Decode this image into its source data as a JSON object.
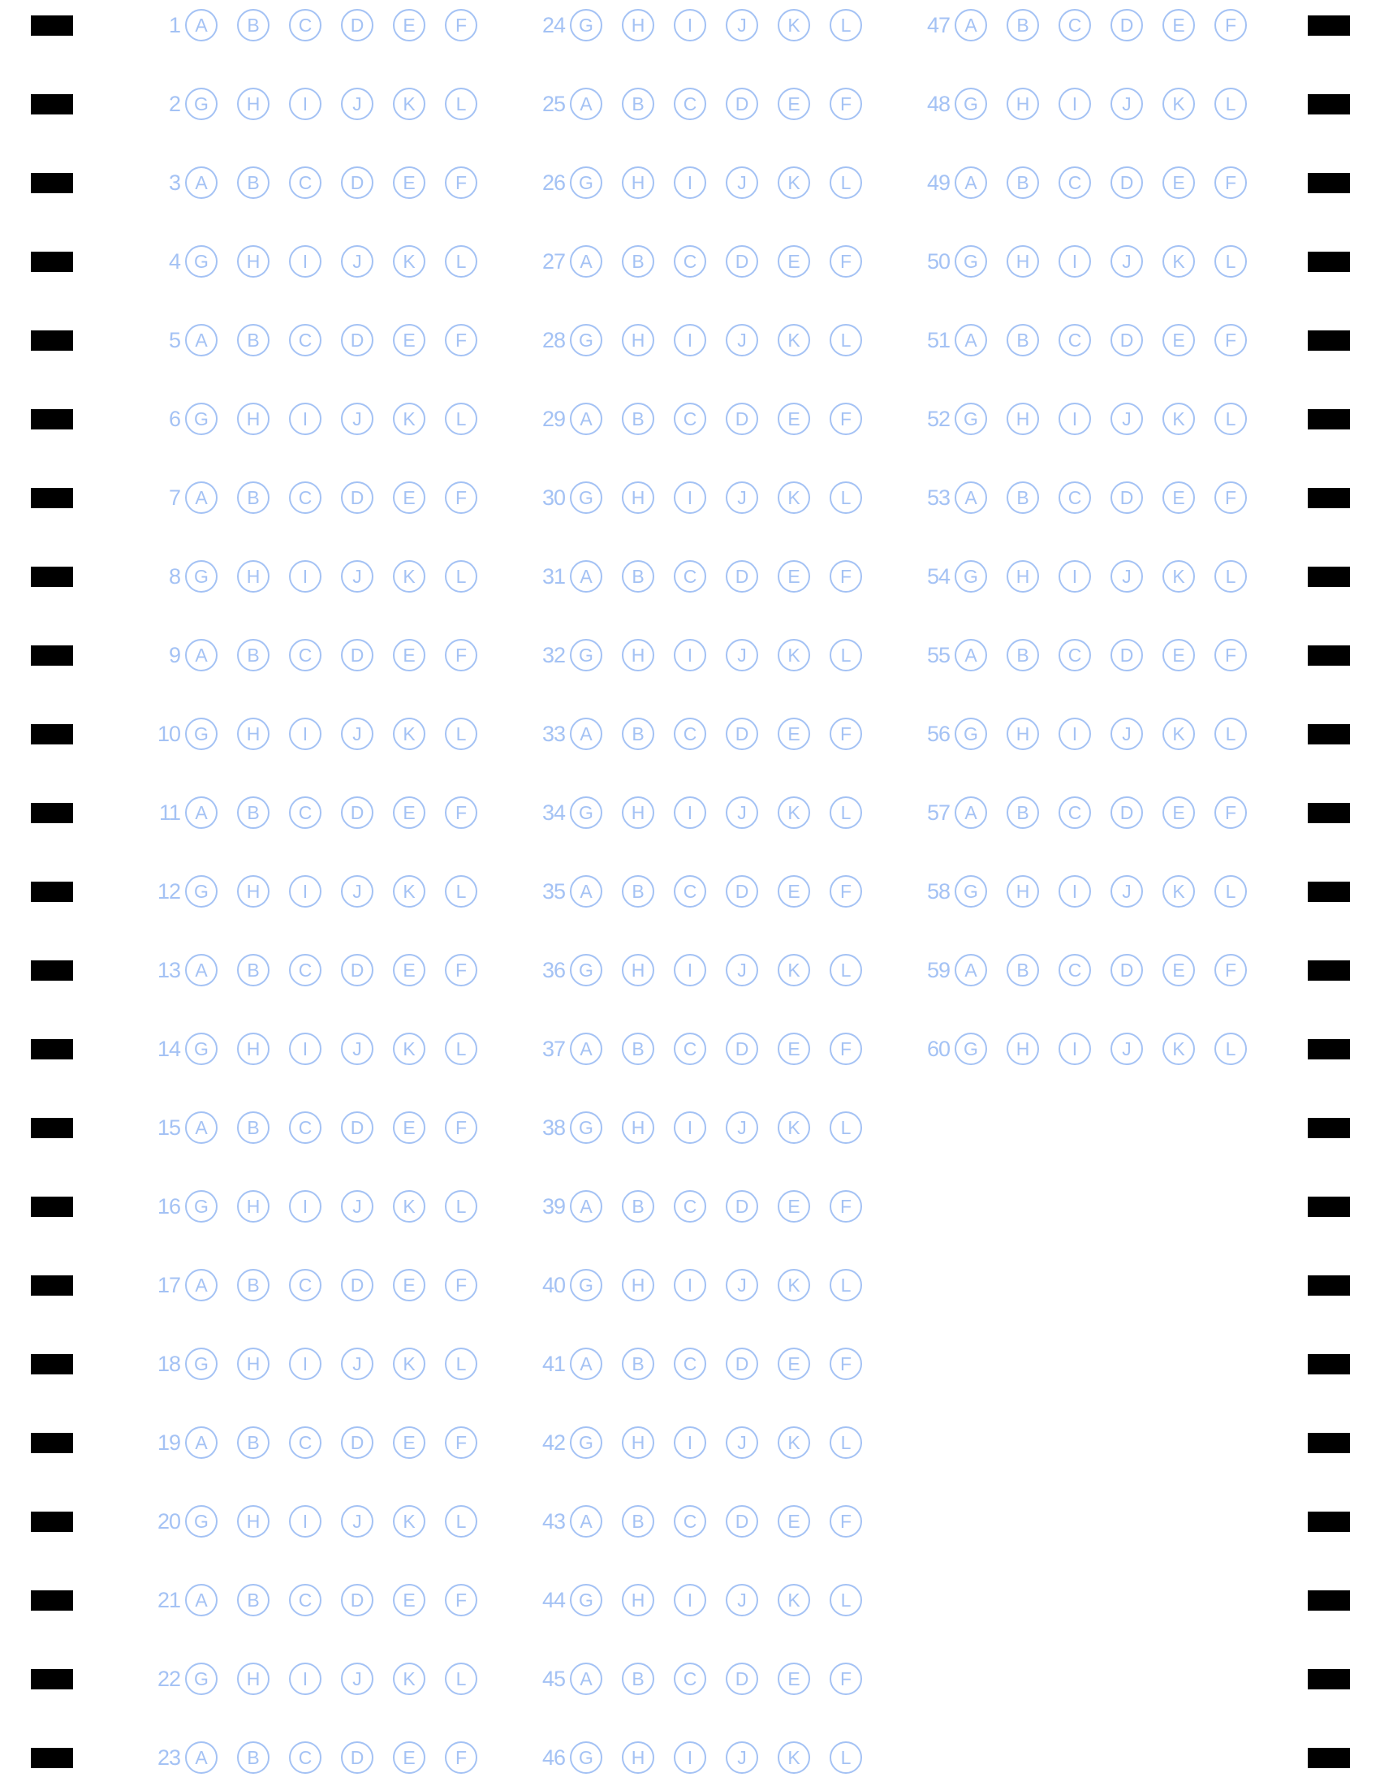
{
  "colors": {
    "ink": "#a4c2f4",
    "timing_mark": "#000000",
    "paper": "#ffffff"
  },
  "choice_sets": {
    "odd": [
      "A",
      "B",
      "C",
      "D",
      "E",
      "F"
    ],
    "even": [
      "G",
      "H",
      "I",
      "J",
      "K",
      "L"
    ]
  },
  "columns": [
    {
      "first_question": 1,
      "last_question": 23
    },
    {
      "first_question": 24,
      "last_question": 46
    },
    {
      "first_question": 47,
      "last_question": 60
    }
  ],
  "timing_mark_rows": 23
}
